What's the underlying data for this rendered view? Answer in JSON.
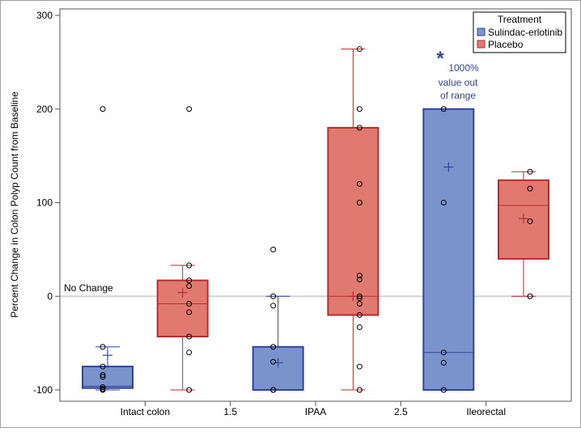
{
  "chart_data": {
    "type": "box",
    "ylabel": "Percent Change in Colon Polyp Count from Baseline",
    "ylim": [
      -100,
      300
    ],
    "yticks": [
      -100,
      0,
      100,
      200,
      300
    ],
    "xlim": [
      0.5,
      3.5
    ],
    "xticks": [
      {
        "value": 1,
        "label": "Intact colon"
      },
      {
        "value": 1.5,
        "label": "1.5"
      },
      {
        "value": 2,
        "label": "IPAA"
      },
      {
        "value": 2.5,
        "label": "2.5"
      },
      {
        "value": 3,
        "label": "Ileorectal"
      }
    ],
    "reference_line": {
      "y": 0,
      "label": "No Change"
    },
    "annotation": {
      "symbol": "*",
      "lines": [
        "1000%",
        "value out",
        "of range"
      ],
      "x": 2.95,
      "y": 250
    },
    "legend": {
      "title": "Treatment",
      "placement": "top-right",
      "entries": [
        "Sulindac-erlotinib",
        "Placebo"
      ]
    },
    "colors": {
      "Sulindac-erlotinib": {
        "fill": "#7b93cc",
        "stroke": "#35449a"
      },
      "Placebo": {
        "fill": "#e07a70",
        "stroke": "#b52d33"
      },
      "reference": "#d3d3d3"
    },
    "series": [
      {
        "name": "Sulindac-erlotinib",
        "boxes": [
          {
            "x": 0.78,
            "q1": -98,
            "median": -96,
            "q3": -75,
            "mean": -63,
            "whisker_low": -100,
            "whisker_high": -54,
            "points": [
              200,
              -54,
              -75,
              -84,
              -86,
              -97,
              -99,
              -100
            ]
          },
          {
            "x": 1.78,
            "q1": -100,
            "median": -100,
            "q3": -54,
            "mean": -71,
            "whisker_low": -100,
            "whisker_high": 0,
            "points": [
              50,
              0,
              -10,
              -54,
              -70,
              -100,
              -100
            ]
          },
          {
            "x": 2.78,
            "q1": -100,
            "median": -60,
            "q3": 200,
            "mean": 138,
            "whisker_low": -100,
            "whisker_high": 200,
            "points": [
              200,
              100,
              -60,
              -71,
              -100
            ]
          }
        ]
      },
      {
        "name": "Placebo",
        "boxes": [
          {
            "x": 1.22,
            "q1": -43,
            "median": -8,
            "q3": 17,
            "mean": 4,
            "whisker_low": -100,
            "whisker_high": 33,
            "points": [
              200,
              33,
              17,
              11,
              -8,
              -17,
              -43,
              -60,
              -100
            ]
          },
          {
            "x": 2.22,
            "q1": -20,
            "median": 0,
            "q3": 180,
            "mean": 0,
            "whisker_low": -100,
            "whisker_high": 264,
            "points": [
              264,
              200,
              180,
              120,
              100,
              22,
              18,
              0,
              -2,
              -8,
              -20,
              -33,
              -75,
              -100
            ]
          },
          {
            "x": 3.22,
            "q1": 40,
            "median": 97,
            "q3": 124,
            "mean": 83,
            "whisker_low": 0,
            "whisker_high": 133,
            "points": [
              133,
              115,
              80,
              0
            ]
          }
        ]
      }
    ]
  }
}
